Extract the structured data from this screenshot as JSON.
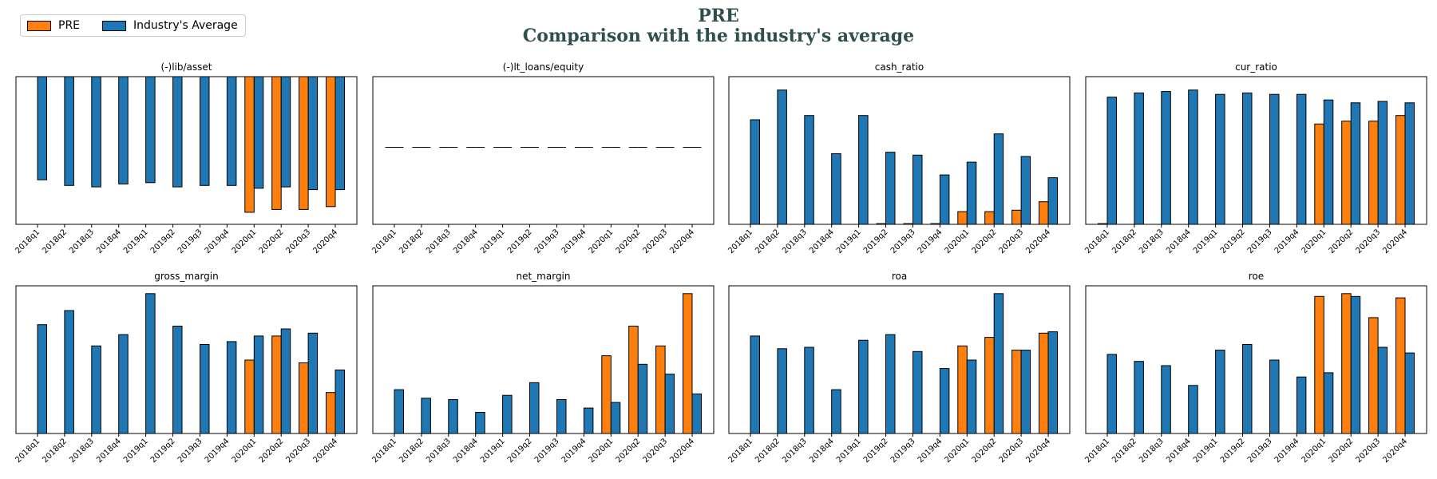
{
  "header": {
    "title_line1": "PRE",
    "title_line2": "Comparison with the industry's average"
  },
  "legend": {
    "entries": [
      {
        "label": "PRE",
        "color": "#ff7f0e"
      },
      {
        "label": "Industry's Average",
        "color": "#1f77b4"
      }
    ]
  },
  "colors": {
    "company": "#ff7f0e",
    "industry": "#1f77b4",
    "edge": "#000000"
  },
  "chart_data": [
    {
      "type": "bar",
      "title": "(-)lib/asset",
      "orientation": "negative",
      "categories": [
        "2018q1",
        "2018q2",
        "2018q3",
        "2018q4",
        "2019q1",
        "2019q2",
        "2019q3",
        "2019q4",
        "2020q1",
        "2020q2",
        "2020q3",
        "2020q4"
      ],
      "ylim": [
        -1.0,
        0.0
      ],
      "series": [
        {
          "name": "PRE",
          "values": [
            null,
            null,
            null,
            null,
            null,
            null,
            null,
            null,
            -0.96,
            -0.94,
            -0.94,
            -0.92
          ]
        },
        {
          "name": "Industry's Average",
          "values": [
            -0.73,
            -0.77,
            -0.78,
            -0.76,
            -0.75,
            -0.78,
            -0.77,
            -0.77,
            -0.79,
            -0.78,
            -0.8,
            -0.8
          ]
        }
      ]
    },
    {
      "type": "bar",
      "title": "(-)lt_loans/equity",
      "categories": [
        "2018q1",
        "2018q2",
        "2018q3",
        "2018q4",
        "2019q1",
        "2019q2",
        "2019q3",
        "2019q4",
        "2020q1",
        "2020q2",
        "2020q3",
        "2020q4"
      ],
      "ylim": [
        -0.05,
        0.05
      ],
      "series": [
        {
          "name": "PRE",
          "values": [
            0,
            0,
            0,
            0,
            0,
            0,
            0,
            0,
            0,
            0,
            0,
            0
          ]
        },
        {
          "name": "Industry's Average",
          "values": [
            0,
            0,
            0,
            0,
            0,
            0,
            0,
            0,
            0,
            0,
            0,
            0
          ]
        }
      ]
    },
    {
      "type": "bar",
      "title": "cash_ratio",
      "categories": [
        "2018q1",
        "2018q2",
        "2018q3",
        "2018q4",
        "2019q1",
        "2019q2",
        "2019q3",
        "2019q4",
        "2020q1",
        "2020q2",
        "2020q3",
        "2020q4"
      ],
      "ylim": [
        0,
        1.0
      ],
      "series": [
        {
          "name": "PRE",
          "values": [
            null,
            null,
            null,
            null,
            null,
            0.005,
            0.005,
            0.005,
            0.09,
            0.09,
            0.1,
            0.16
          ]
        },
        {
          "name": "Industry's Average",
          "values": [
            0.74,
            0.95,
            0.77,
            0.5,
            0.77,
            0.51,
            0.49,
            0.35,
            0.44,
            0.64,
            0.48,
            0.33
          ]
        }
      ]
    },
    {
      "type": "bar",
      "title": "cur_ratio",
      "categories": [
        "2018q1",
        "2018q2",
        "2018q3",
        "2018q4",
        "2019q1",
        "2019q2",
        "2019q3",
        "2019q4",
        "2020q1",
        "2020q2",
        "2020q3",
        "2020q4"
      ],
      "ylim": [
        0,
        1.0
      ],
      "series": [
        {
          "name": "PRE",
          "values": [
            0.005,
            null,
            null,
            null,
            null,
            null,
            null,
            null,
            0.71,
            0.73,
            0.73,
            0.77
          ]
        },
        {
          "name": "Industry's Average",
          "values": [
            0.9,
            0.93,
            0.94,
            0.95,
            0.92,
            0.93,
            0.92,
            0.92,
            0.88,
            0.86,
            0.87,
            0.86
          ]
        }
      ]
    },
    {
      "type": "bar",
      "title": "gross_margin",
      "categories": [
        "2018q1",
        "2018q2",
        "2018q3",
        "2018q4",
        "2019q1",
        "2019q2",
        "2019q3",
        "2019q4",
        "2020q1",
        "2020q2",
        "2020q3",
        "2020q4"
      ],
      "ylim": [
        0,
        1.0
      ],
      "series": [
        {
          "name": "PRE",
          "values": [
            null,
            null,
            null,
            null,
            null,
            null,
            null,
            null,
            0.52,
            0.69,
            0.5,
            0.29
          ]
        },
        {
          "name": "Industry's Average",
          "values": [
            0.77,
            0.87,
            0.62,
            0.7,
            0.99,
            0.76,
            0.63,
            0.65,
            0.69,
            0.74,
            0.71,
            0.45
          ]
        }
      ]
    },
    {
      "type": "bar",
      "title": "net_margin",
      "categories": [
        "2018q1",
        "2018q2",
        "2018q3",
        "2018q4",
        "2019q1",
        "2019q2",
        "2019q3",
        "2019q4",
        "2020q1",
        "2020q2",
        "2020q3",
        "2020q4"
      ],
      "ylim": [
        0,
        1.0
      ],
      "series": [
        {
          "name": "PRE",
          "values": [
            null,
            null,
            null,
            null,
            null,
            null,
            null,
            null,
            0.55,
            0.76,
            0.62,
            0.99
          ]
        },
        {
          "name": "Industry's Average",
          "values": [
            0.31,
            0.25,
            0.24,
            0.15,
            0.27,
            0.36,
            0.24,
            0.18,
            0.22,
            0.49,
            0.42,
            0.28
          ]
        }
      ]
    },
    {
      "type": "bar",
      "title": "roa",
      "categories": [
        "2018q1",
        "2018q2",
        "2018q3",
        "2018q4",
        "2019q1",
        "2019q2",
        "2019q3",
        "2019q4",
        "2020q1",
        "2020q2",
        "2020q3",
        "2020q4"
      ],
      "ylim": [
        0,
        1.0
      ],
      "series": [
        {
          "name": "PRE",
          "values": [
            null,
            null,
            null,
            null,
            null,
            null,
            null,
            null,
            0.62,
            0.68,
            0.59,
            0.71
          ]
        },
        {
          "name": "Industry's Average",
          "values": [
            0.69,
            0.6,
            0.61,
            0.31,
            0.66,
            0.7,
            0.58,
            0.46,
            0.52,
            0.99,
            0.59,
            0.72
          ]
        }
      ]
    },
    {
      "type": "bar",
      "title": "roe",
      "categories": [
        "2018q1",
        "2018q2",
        "2018q3",
        "2018q4",
        "2019q1",
        "2019q2",
        "2019q3",
        "2019q4",
        "2020q1",
        "2020q2",
        "2020q3",
        "2020q4"
      ],
      "ylim": [
        0,
        1.0
      ],
      "series": [
        {
          "name": "PRE",
          "values": [
            null,
            null,
            null,
            null,
            null,
            null,
            null,
            null,
            0.97,
            0.99,
            0.82,
            0.96
          ]
        },
        {
          "name": "Industry's Average",
          "values": [
            0.56,
            0.51,
            0.48,
            0.34,
            0.59,
            0.63,
            0.52,
            0.4,
            0.43,
            0.97,
            0.61,
            0.57
          ]
        }
      ]
    }
  ]
}
